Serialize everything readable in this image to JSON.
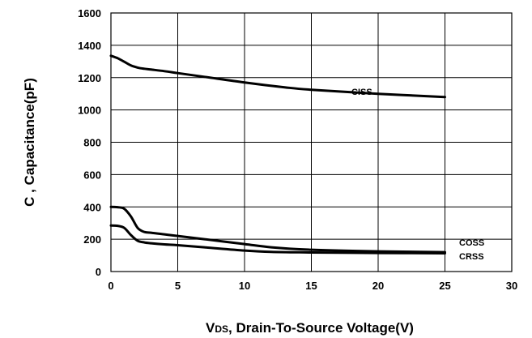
{
  "chart_data": {
    "type": "line",
    "xlabel": "Drain-To-Source Voltage(V)",
    "xlabel_symbol": "V",
    "xlabel_subscript": "DS",
    "ylabel": "C , Capacitance(pF)",
    "xlim": [
      0,
      30
    ],
    "ylim": [
      0,
      1600
    ],
    "x_ticks": [
      0,
      5,
      10,
      15,
      20,
      25,
      30
    ],
    "y_ticks": [
      0,
      200,
      400,
      600,
      800,
      1000,
      1200,
      1400,
      1600
    ],
    "grid": true,
    "series": [
      {
        "name": "CISS",
        "x": [
          0,
          0.5,
          1,
          1.5,
          2,
          2.5,
          3,
          4,
          5,
          7,
          10,
          13,
          15,
          20,
          25
        ],
        "y": [
          1335,
          1320,
          1298,
          1275,
          1262,
          1255,
          1250,
          1240,
          1228,
          1205,
          1170,
          1140,
          1125,
          1100,
          1080
        ]
      },
      {
        "name": "COSS",
        "x": [
          0,
          0.5,
          1,
          1.5,
          2,
          2.5,
          3,
          4,
          5,
          7,
          10,
          12,
          15,
          20,
          25
        ],
        "y": [
          400,
          398,
          388,
          340,
          270,
          245,
          240,
          230,
          220,
          200,
          170,
          150,
          135,
          125,
          120
        ]
      },
      {
        "name": "CRSS",
        "x": [
          0,
          0.5,
          1,
          1.5,
          2,
          2.5,
          3,
          4,
          5,
          7,
          10,
          12,
          15,
          20,
          25
        ],
        "y": [
          285,
          283,
          270,
          225,
          190,
          180,
          175,
          168,
          163,
          150,
          130,
          122,
          118,
          115,
          113
        ]
      }
    ]
  }
}
